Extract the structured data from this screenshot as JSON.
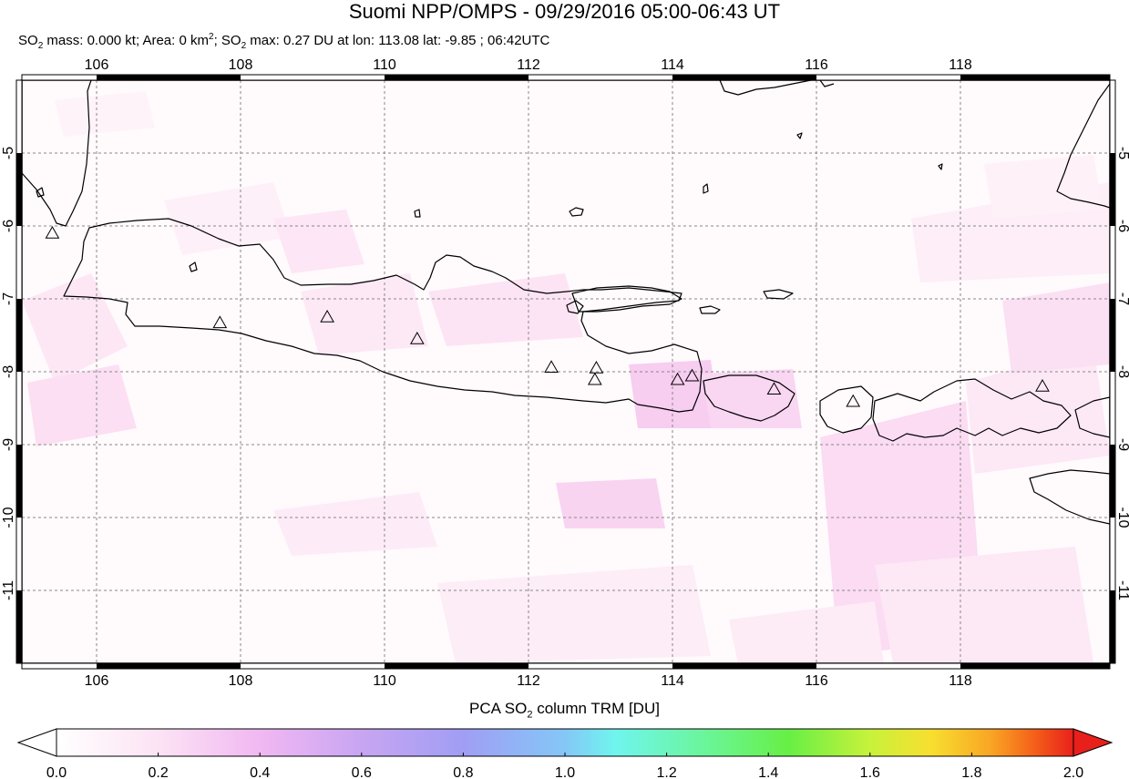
{
  "title": "Suomi NPP/OMPS - 09/29/2016 05:00-06:43 UT",
  "subtitle": {
    "so2_prefix": "SO",
    "so2_sub": "2",
    "mass_text": " mass: 0.000 kt; Area: 0 km",
    "area_sup": "2",
    "sep": "; SO",
    "so2_sub_2": "2",
    "max_text": " max: 0.27 DU at lon: 113.08 lat: -9.85 ; 06:42UTC"
  },
  "map": {
    "lon_range": [
      105,
      120
    ],
    "lat_range": [
      -12,
      -4
    ],
    "lon_ticks": [
      "106",
      "108",
      "110",
      "112",
      "114",
      "116",
      "118"
    ],
    "lat_ticks": [
      "-5",
      "-6",
      "-7",
      "-8",
      "-9",
      "-10",
      "-11"
    ],
    "volcanoes": [
      {
        "lon": 105.42,
        "lat": -6.1
      },
      {
        "lon": 107.73,
        "lat": -7.33
      },
      {
        "lon": 109.21,
        "lat": -7.25
      },
      {
        "lon": 110.45,
        "lat": -7.55
      },
      {
        "lon": 112.3,
        "lat": -7.94
      },
      {
        "lon": 112.92,
        "lat": -7.95
      },
      {
        "lon": 112.9,
        "lat": -8.11
      },
      {
        "lon": 114.04,
        "lat": -8.11
      },
      {
        "lon": 114.24,
        "lat": -8.06
      },
      {
        "lon": 115.37,
        "lat": -8.24
      },
      {
        "lon": 116.46,
        "lat": -8.41
      },
      {
        "lon": 119.07,
        "lat": -8.2
      }
    ]
  },
  "colorbar": {
    "title_prefix": "PCA SO",
    "title_sub": "2",
    "title_suffix": " column TRM [DU]",
    "min": 0.0,
    "max": 2.0,
    "tick_labels": [
      "0.0",
      "0.2",
      "0.4",
      "0.6",
      "0.8",
      "1.0",
      "1.2",
      "1.4",
      "1.6",
      "1.8",
      "2.0"
    ],
    "colors": [
      "#ffffff",
      "#fce3f4",
      "#f1b8f2",
      "#c8a5f2",
      "#a09ef4",
      "#84c7f7",
      "#6ff5ee",
      "#6af58e",
      "#67ef45",
      "#c8f23b",
      "#f8df2f",
      "#f9a424",
      "#f5621a",
      "#e8201b"
    ]
  }
}
